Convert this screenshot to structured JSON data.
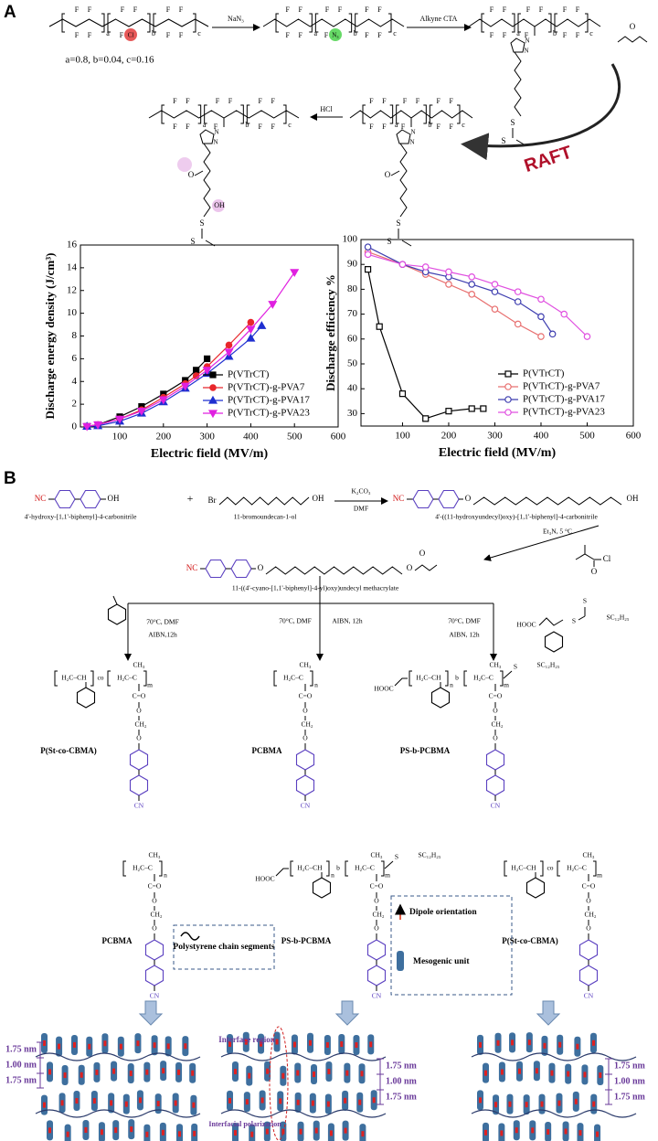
{
  "panel_a": {
    "label": "A",
    "composition": "a=0.8, b=0.04, c=0.16",
    "reagent_1": "NaN₃",
    "reagent_2": "Alkyne CTA",
    "reagent_3": "HCl",
    "arrow_label": "RAFT",
    "atoms": {
      "F": "F",
      "Cl": "Cl",
      "N3": "N₃",
      "S": "S",
      "O": "O",
      "OH": "OH",
      "a": "a",
      "b": "b",
      "c": "c",
      "N": "N"
    }
  },
  "chart_data": [
    {
      "type": "line",
      "x_label": "Electric field (MV/m)",
      "y_label": "Discharge   energy density (J/cm³)",
      "xlim": [
        10,
        600
      ],
      "xticks": [
        100,
        200,
        300,
        400,
        500,
        600
      ],
      "ylim": [
        0,
        16
      ],
      "yticks": [
        0,
        2,
        4,
        6,
        8,
        10,
        12,
        14,
        16
      ],
      "legend": "lower right",
      "hollow_markers": false,
      "series": [
        {
          "name": "P(VTrCT)",
          "color": "#000000",
          "marker": "square",
          "x": [
            25,
            50,
            100,
            150,
            200,
            250,
            275,
            300
          ],
          "values": [
            0.05,
            0.2,
            0.9,
            1.8,
            2.9,
            4.1,
            5.0,
            6.0
          ]
        },
        {
          "name": "P(VTrCT)-g-PVA7",
          "color": "#e8262b",
          "marker": "circle",
          "x": [
            25,
            50,
            100,
            150,
            200,
            250,
            275,
            300,
            350,
            400
          ],
          "values": [
            0.05,
            0.2,
            0.7,
            1.5,
            2.6,
            3.8,
            4.5,
            5.3,
            7.2,
            9.2
          ]
        },
        {
          "name": "P(VTrCT)-g-PVA17",
          "color": "#1f2fd0",
          "marker": "triangle",
          "x": [
            25,
            50,
            100,
            150,
            200,
            250,
            300,
            350,
            400,
            425
          ],
          "values": [
            0.05,
            0.1,
            0.5,
            1.2,
            2.2,
            3.4,
            4.7,
            6.2,
            7.8,
            8.9
          ]
        },
        {
          "name": "P(VTrCT)-g-PVA23",
          "color": "#e020e0",
          "marker": "down-triangle",
          "x": [
            25,
            50,
            100,
            150,
            200,
            250,
            300,
            350,
            400,
            450,
            500
          ],
          "values": [
            0.05,
            0.2,
            0.7,
            1.4,
            2.4,
            3.6,
            5.0,
            6.6,
            8.6,
            10.8,
            13.6
          ]
        }
      ]
    },
    {
      "type": "line",
      "x_label": "Electric field (MV/m)",
      "y_label": "Discharge   efficiency %",
      "xlim": [
        10,
        600
      ],
      "xticks": [
        100,
        200,
        300,
        400,
        500,
        600
      ],
      "ylim": [
        25,
        100
      ],
      "yticks": [
        30,
        40,
        50,
        60,
        70,
        80,
        90,
        100
      ],
      "legend": "lower right",
      "hollow_markers": true,
      "series": [
        {
          "name": "P(VTrCT)",
          "color": "#000000",
          "marker": "square",
          "x": [
            25,
            50,
            100,
            150,
            200,
            250,
            275
          ],
          "values": [
            88,
            65,
            38,
            28,
            31,
            32,
            32
          ]
        },
        {
          "name": "P(VTrCT)-g-PVA7",
          "color": "#e87070",
          "marker": "circle",
          "x": [
            25,
            100,
            150,
            200,
            250,
            300,
            350,
            400
          ],
          "values": [
            95,
            90,
            86,
            82,
            78,
            72,
            66,
            61
          ]
        },
        {
          "name": "P(VTrCT)-g-PVA17",
          "color": "#3f3fb0",
          "marker": "circle",
          "x": [
            25,
            100,
            150,
            200,
            250,
            300,
            350,
            400,
            425
          ],
          "values": [
            97,
            90,
            87,
            85,
            82,
            79,
            75,
            69,
            62
          ]
        },
        {
          "name": "P(VTrCT)-g-PVA23",
          "color": "#e050e0",
          "marker": "circle",
          "x": [
            25,
            100,
            150,
            200,
            250,
            300,
            350,
            400,
            450,
            500
          ],
          "values": [
            94,
            90,
            89,
            87,
            85,
            82,
            79,
            76,
            70,
            61
          ]
        }
      ]
    }
  ],
  "panel_b": {
    "label": "B",
    "reactant_1": "4'-hydroxy-[1,1'-biphenyl]-4-carbonitrile",
    "plus": "+",
    "reactant_2": "11-bromoundecan-1-ol",
    "reagent_1": "K₂CO₃",
    "solvent_1": "DMF",
    "intermediate": "4'-((11-hydroxyundecyl)oxy)-[1,1'-biphenyl]-4-carbonitrile",
    "reagent_2": "Et₃N, 5 °C",
    "monomer": "11-((4'-cyano-[1,1'-biphenyl]-4-yl)oxy)undecyl methacrylate",
    "condition_1": "70°C, DMF",
    "condition_2": "AIBN,12h",
    "condition_3": "70°C, DMF",
    "condition_4": "AIBN, 12h",
    "condition_5": "70°C, DMF",
    "condition_6": "AIBN, 12h",
    "product_1": "P(St-co-CBMA)",
    "product_2": "PCBMA",
    "product_3": "PS-b-PCBMA",
    "legend_1": "Polystyrene chain segments",
    "legend_2": "Dipole orientation",
    "legend_3": "Mesogenic unit",
    "annotation_1": "Interface region",
    "annotation_2": "Interfacial polarization",
    "spacing_outer": "1.75 nm",
    "spacing_inner": "1.00 nm",
    "atoms": {
      "NC": "NC",
      "CN": "CN",
      "OH": "OH",
      "Br": "Br",
      "O": "O",
      "Cl": "Cl",
      "CH3": "CH₃",
      "CO": "C=O",
      "CH2": "CH₂",
      "HOOC": "HOOC",
      "SC12H25": "SC₁₂H₂₅",
      "S": "S",
      "n": "n",
      "m": "m",
      "co": "co",
      "b": "b",
      "H2CCH": "H₂C–CH",
      "H2CC": "H₂C–C"
    }
  }
}
